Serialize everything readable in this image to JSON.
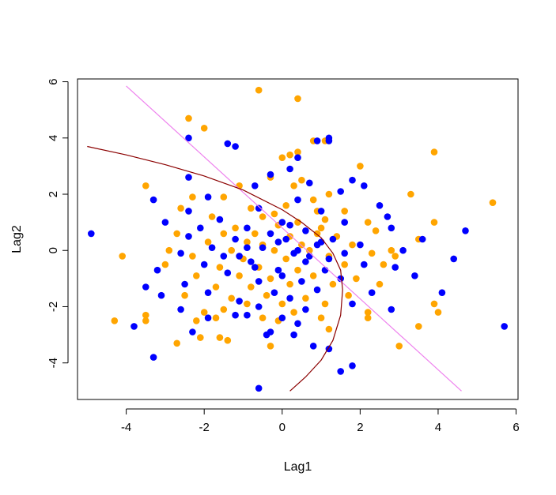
{
  "chart_data": {
    "type": "scatter",
    "title": "",
    "xlabel": "Lag1",
    "ylabel": "Lag2",
    "xlim": [
      -5.25,
      6.05
    ],
    "ylim": [
      -5.3,
      6.1
    ],
    "xticks": [
      -4,
      -2,
      0,
      2,
      4,
      6
    ],
    "yticks": [
      -4,
      -2,
      0,
      2,
      4,
      6
    ],
    "xtick_labels": [
      "-4",
      "-2",
      "0",
      "2",
      "4",
      "6"
    ],
    "ytick_labels": [
      "-4",
      "-2",
      "0",
      "2",
      "4",
      "6"
    ],
    "grid": false,
    "colors": {
      "up": "#ffa500",
      "down": "#0000ff",
      "lda_boundary": "#ee82ee",
      "qda_boundary": "#8b0000"
    },
    "series": [
      {
        "color": "#ffa500",
        "points": [
          [
            -0.6,
            5.7
          ],
          [
            0.4,
            5.4
          ],
          [
            -2.4,
            4.7
          ],
          [
            -2.0,
            4.35
          ],
          [
            0.8,
            3.9
          ],
          [
            1.1,
            3.9
          ],
          [
            0.4,
            3.5
          ],
          [
            0.0,
            3.3
          ],
          [
            0.2,
            3.4
          ],
          [
            3.9,
            3.5
          ],
          [
            2.0,
            3.0
          ],
          [
            -0.3,
            2.6
          ],
          [
            0.5,
            2.5
          ],
          [
            0.3,
            2.3
          ],
          [
            -1.1,
            2.3
          ],
          [
            -3.5,
            2.3
          ],
          [
            3.3,
            2.0
          ],
          [
            1.2,
            2.0
          ],
          [
            -2.3,
            1.9
          ],
          [
            -1.5,
            1.9
          ],
          [
            0.8,
            1.8
          ],
          [
            5.4,
            1.7
          ],
          [
            -2.6,
            1.5
          ],
          [
            -0.8,
            1.5
          ],
          [
            0.1,
            1.6
          ],
          [
            0.9,
            1.4
          ],
          [
            1.6,
            1.4
          ],
          [
            -1.8,
            1.2
          ],
          [
            -0.5,
            1.2
          ],
          [
            0.4,
            1.0
          ],
          [
            2.2,
            1.0
          ],
          [
            3.9,
            1.0
          ],
          [
            -1.2,
            0.8
          ],
          [
            -0.1,
            0.9
          ],
          [
            1.0,
            0.8
          ],
          [
            2.4,
            0.7
          ],
          [
            -2.7,
            0.6
          ],
          [
            -1.5,
            0.6
          ],
          [
            -0.7,
            0.6
          ],
          [
            0.2,
            0.5
          ],
          [
            1.4,
            0.5
          ],
          [
            3.5,
            0.4
          ],
          [
            -1.9,
            0.3
          ],
          [
            -0.9,
            0.3
          ],
          [
            0.5,
            0.2
          ],
          [
            1.8,
            0.2
          ],
          [
            -2.9,
            0.0
          ],
          [
            -1.3,
            0.0
          ],
          [
            -0.2,
            0.0
          ],
          [
            0.7,
            0.0
          ],
          [
            2.8,
            0.0
          ],
          [
            -4.1,
            -0.2
          ],
          [
            -2.3,
            -0.2
          ],
          [
            -1.0,
            -0.3
          ],
          [
            0.1,
            -0.3
          ],
          [
            1.2,
            -0.2
          ],
          [
            2.3,
            -0.1
          ],
          [
            -3.0,
            -0.5
          ],
          [
            -1.6,
            -0.6
          ],
          [
            -0.6,
            -0.6
          ],
          [
            0.4,
            -0.7
          ],
          [
            1.6,
            -0.5
          ],
          [
            2.6,
            -0.5
          ],
          [
            -2.2,
            -0.9
          ],
          [
            -1.1,
            -0.9
          ],
          [
            -0.3,
            -1.0
          ],
          [
            0.8,
            -0.9
          ],
          [
            1.9,
            -1.0
          ],
          [
            -1.7,
            -1.3
          ],
          [
            -0.8,
            -1.3
          ],
          [
            0.2,
            -1.2
          ],
          [
            1.3,
            -1.2
          ],
          [
            2.5,
            -1.2
          ],
          [
            -2.5,
            -1.6
          ],
          [
            -1.3,
            -1.7
          ],
          [
            -0.4,
            -1.6
          ],
          [
            0.6,
            -1.7
          ],
          [
            1.7,
            -1.6
          ],
          [
            -2.0,
            -2.2
          ],
          [
            -0.9,
            -1.9
          ],
          [
            0.0,
            -1.9
          ],
          [
            1.1,
            -1.9
          ],
          [
            2.2,
            -2.2
          ],
          [
            -1.5,
            -2.1
          ],
          [
            0.3,
            -2.2
          ],
          [
            3.9,
            -1.9
          ],
          [
            4.0,
            -2.2
          ],
          [
            -3.5,
            -2.3
          ],
          [
            -3.5,
            -2.5
          ],
          [
            -4.3,
            -2.5
          ],
          [
            -1.7,
            -2.4
          ],
          [
            -0.1,
            -2.5
          ],
          [
            -0.5,
            -2.4
          ],
          [
            -2.2,
            -2.5
          ],
          [
            1.0,
            -2.4
          ],
          [
            3.5,
            -2.7
          ],
          [
            -1.6,
            -3.1
          ],
          [
            -2.1,
            -3.1
          ],
          [
            -2.7,
            -3.3
          ],
          [
            -1.4,
            -3.2
          ],
          [
            -0.3,
            -3.4
          ],
          [
            1.2,
            -2.8
          ],
          [
            3.0,
            -3.4
          ],
          [
            2.2,
            -2.4
          ],
          [
            2.9,
            -0.2
          ],
          [
            -0.5,
            0.2
          ],
          [
            0.9,
            0.6
          ],
          [
            -0.2,
            1.3
          ],
          [
            1.1,
            1.1
          ]
        ]
      },
      {
        "color": "#0000ff",
        "points": [
          [
            -2.4,
            4.0
          ],
          [
            1.2,
            3.9
          ],
          [
            1.2,
            4.0
          ],
          [
            -1.4,
            3.8
          ],
          [
            -1.2,
            3.7
          ],
          [
            0.9,
            3.9
          ],
          [
            0.4,
            3.3
          ],
          [
            0.2,
            2.9
          ],
          [
            1.8,
            2.5
          ],
          [
            -2.4,
            2.6
          ],
          [
            -0.3,
            2.7
          ],
          [
            0.7,
            2.4
          ],
          [
            2.1,
            2.3
          ],
          [
            -0.7,
            2.3
          ],
          [
            1.5,
            2.1
          ],
          [
            -3.3,
            1.8
          ],
          [
            -1.9,
            1.9
          ],
          [
            0.4,
            1.8
          ],
          [
            2.5,
            1.6
          ],
          [
            -2.4,
            1.4
          ],
          [
            -0.6,
            1.5
          ],
          [
            1.0,
            1.4
          ],
          [
            2.7,
            1.2
          ],
          [
            -3.0,
            1.0
          ],
          [
            -1.6,
            1.1
          ],
          [
            0.0,
            1.0
          ],
          [
            1.6,
            1.0
          ],
          [
            -2.1,
            0.8
          ],
          [
            -0.9,
            0.8
          ],
          [
            0.6,
            0.7
          ],
          [
            2.8,
            0.8
          ],
          [
            4.7,
            0.7
          ],
          [
            -4.9,
            0.6
          ],
          [
            -2.4,
            0.5
          ],
          [
            -1.2,
            0.4
          ],
          [
            0.1,
            0.4
          ],
          [
            1.3,
            0.4
          ],
          [
            3.6,
            0.4
          ],
          [
            -1.8,
            0.1
          ],
          [
            -0.5,
            0.1
          ],
          [
            0.9,
            0.2
          ],
          [
            2.0,
            0.2
          ],
          [
            -2.6,
            -0.1
          ],
          [
            -1.1,
            -0.2
          ],
          [
            0.3,
            -0.1
          ],
          [
            1.6,
            -0.1
          ],
          [
            3.1,
            0.0
          ],
          [
            4.4,
            -0.3
          ],
          [
            -2.0,
            -0.5
          ],
          [
            -0.8,
            -0.4
          ],
          [
            0.6,
            -0.4
          ],
          [
            2.1,
            -0.5
          ],
          [
            -3.2,
            -0.7
          ],
          [
            -1.4,
            -0.8
          ],
          [
            -0.1,
            -0.7
          ],
          [
            1.1,
            -0.7
          ],
          [
            2.9,
            -0.6
          ],
          [
            -2.5,
            -1.2
          ],
          [
            -0.6,
            -1.1
          ],
          [
            0.5,
            -1.1
          ],
          [
            1.5,
            -1.0
          ],
          [
            3.4,
            -0.9
          ],
          [
            -3.5,
            -1.3
          ],
          [
            -1.9,
            -1.5
          ],
          [
            -0.2,
            -1.5
          ],
          [
            0.9,
            -1.4
          ],
          [
            2.3,
            -1.5
          ],
          [
            -3.1,
            -1.6
          ],
          [
            -1.1,
            -1.8
          ],
          [
            0.2,
            -1.7
          ],
          [
            1.8,
            -1.9
          ],
          [
            4.1,
            -1.5
          ],
          [
            -2.6,
            -2.1
          ],
          [
            -0.6,
            -2.0
          ],
          [
            0.6,
            -2.1
          ],
          [
            2.8,
            -2.1
          ],
          [
            -1.9,
            -2.4
          ],
          [
            -1.2,
            -2.3
          ],
          [
            -0.9,
            -2.3
          ],
          [
            0.0,
            -2.4
          ],
          [
            0.4,
            -2.6
          ],
          [
            -3.8,
            -2.7
          ],
          [
            5.7,
            -2.7
          ],
          [
            -2.3,
            -2.9
          ],
          [
            -0.3,
            -2.9
          ],
          [
            1.2,
            -3.5
          ],
          [
            -0.4,
            -3.0
          ],
          [
            0.8,
            -3.4
          ],
          [
            -3.3,
            -3.8
          ],
          [
            1.5,
            -4.3
          ],
          [
            1.8,
            -4.1
          ],
          [
            -0.6,
            -4.9
          ],
          [
            0.3,
            -3.0
          ],
          [
            -0.9,
            0.1
          ],
          [
            0.7,
            -0.2
          ],
          [
            -0.3,
            0.6
          ],
          [
            0.2,
            0.9
          ],
          [
            1.2,
            -0.3
          ],
          [
            -1.5,
            -0.2
          ],
          [
            0.0,
            -0.9
          ],
          [
            -0.7,
            -0.6
          ],
          [
            1.0,
            0.3
          ],
          [
            0.4,
            0.0
          ],
          [
            -0.1,
            0.3
          ]
        ]
      }
    ],
    "lines": [
      {
        "color": "#ee82ee",
        "x": [
          -4.0,
          4.6
        ],
        "y": [
          5.85,
          -5.0
        ]
      },
      {
        "color": "#8b0000",
        "x": [
          -5.0,
          -4.0,
          -3.0,
          -2.0,
          -1.0,
          0.0,
          0.5,
          1.0,
          1.3,
          1.5,
          1.55,
          1.5,
          1.3,
          1.0,
          0.6,
          0.2
        ],
        "y": [
          3.7,
          3.4,
          3.05,
          2.65,
          2.15,
          1.45,
          1.0,
          0.45,
          -0.1,
          -0.7,
          -1.4,
          -2.3,
          -3.2,
          -3.9,
          -4.5,
          -5.0
        ]
      }
    ]
  }
}
